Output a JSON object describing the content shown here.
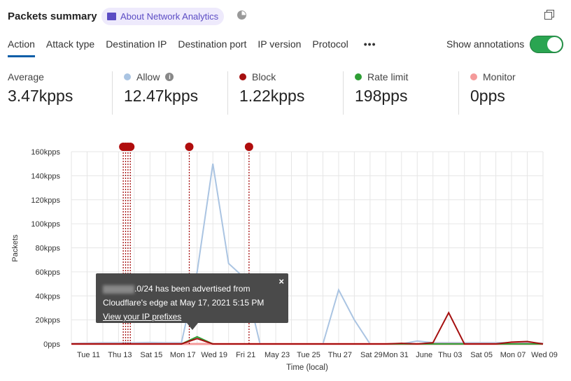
{
  "header": {
    "title": "Packets summary",
    "about_label": "About Network Analytics"
  },
  "tabs": [
    "Action",
    "Attack type",
    "Destination IP",
    "Destination port",
    "IP version",
    "Protocol"
  ],
  "more_label": "•••",
  "annotations_toggle": {
    "label": "Show annotations",
    "on": true
  },
  "stats": [
    {
      "label": "Average",
      "value": "3.47kpps"
    },
    {
      "label": "Allow",
      "value": "12.47kpps",
      "color": "#aac4e2"
    },
    {
      "label": "Block",
      "value": "1.22kpps",
      "color": "#a50f0f"
    },
    {
      "label": "Rate limit",
      "value": "198pps",
      "color": "#2e9e35"
    },
    {
      "label": "Monitor",
      "value": "0pps",
      "color": "#f49a9a"
    }
  ],
  "tooltip": {
    "line1": ".0/24 has been advertised from",
    "line2": "Cloudflare's edge at May 17, 2021 5:15 PM",
    "link": "View your IP prefixes",
    "close": "×"
  },
  "chart_data": {
    "type": "line",
    "ylabel": "Packets",
    "xlabel": "Time (local)",
    "ylim": [
      0,
      160000
    ],
    "yticks": [
      "0pps",
      "20kpps",
      "40kpps",
      "60kpps",
      "80kpps",
      "100kpps",
      "120kpps",
      "140kpps",
      "160kpps"
    ],
    "xticks": [
      [
        "Tue 11",
        1
      ],
      [
        "Thu 13",
        3
      ],
      [
        "Sat 15",
        5
      ],
      [
        "Mon 17",
        7
      ],
      [
        "Wed 19",
        9
      ],
      [
        "Fri 21",
        11
      ],
      [
        "May 23",
        13
      ],
      [
        "Tue 25",
        15
      ],
      [
        "Thu 27",
        17
      ],
      [
        "Sat 29",
        19
      ],
      [
        "Mon 31",
        21
      ],
      [
        "June",
        22
      ],
      [
        "Thu 03",
        24
      ],
      [
        "Sat 05",
        26
      ],
      [
        "Mon 07",
        28
      ],
      [
        "Wed 09",
        30
      ]
    ],
    "x_start": "May 10",
    "x_days": 30,
    "series": [
      {
        "name": "Allow",
        "color": "#aac4e2",
        "values": [
          500,
          800,
          1000,
          1000,
          1000,
          1200,
          1000,
          1000,
          60000,
          150000,
          67000,
          55000,
          0,
          0,
          0,
          0,
          0,
          45000,
          20000,
          0,
          0,
          0,
          2500,
          1000,
          1000,
          1000,
          1000,
          1000,
          1000,
          1000,
          500
        ]
      },
      {
        "name": "Monitor",
        "color": "#f49a9a",
        "values": [
          0,
          0,
          0,
          0,
          0,
          0,
          0,
          0,
          0,
          0,
          0,
          0,
          0,
          0,
          0,
          0,
          0,
          0,
          0,
          0,
          0,
          0,
          0,
          0,
          0,
          0,
          0,
          0,
          0,
          0,
          0
        ]
      },
      {
        "name": "Rate limit",
        "color": "#2e9e35",
        "values": [
          0,
          0,
          0,
          0,
          0,
          0,
          0,
          0,
          6000,
          0,
          0,
          0,
          0,
          0,
          0,
          0,
          0,
          0,
          0,
          0,
          0,
          0,
          0,
          0,
          0,
          0,
          0,
          0,
          0,
          0,
          0
        ]
      },
      {
        "name": "Block",
        "color": "#a50f0f",
        "values": [
          0,
          0,
          0,
          0,
          0,
          0,
          0,
          0,
          4500,
          0,
          0,
          0,
          0,
          0,
          0,
          0,
          0,
          0,
          0,
          0,
          0,
          500,
          0,
          1000,
          26000,
          0,
          0,
          0,
          1500,
          2000,
          0
        ]
      }
    ],
    "annotation_markers": [
      3.3,
      3.45,
      3.6,
      3.75,
      7.5,
      11.3
    ],
    "grid": true
  }
}
